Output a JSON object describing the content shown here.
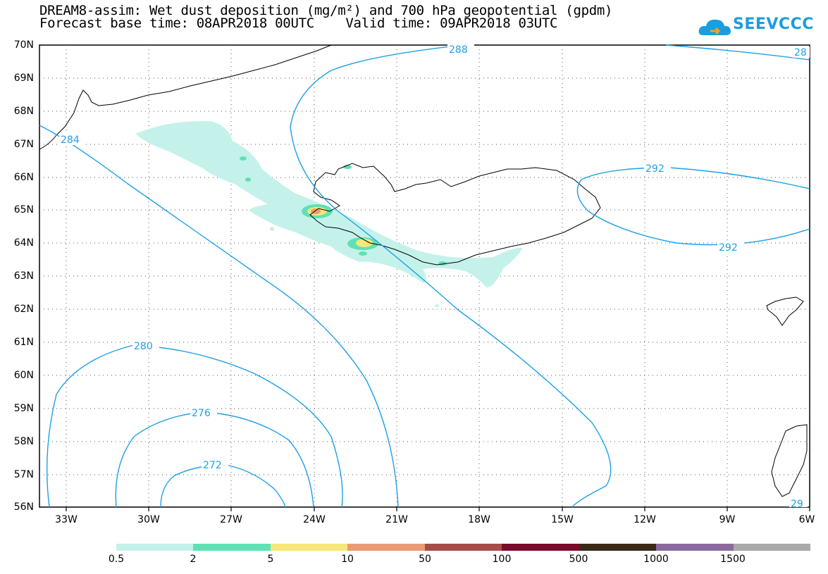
{
  "header": {
    "title_line1": "DREAM8-assim: Wet dust deposition (mg/m²) and 700 hPa geopotential (gpdm)",
    "title_line2": "Forecast base time: 08APR2018 00UTC    Valid time: 09APR2018 03UTC"
  },
  "logo": {
    "text": "SEEVCCC",
    "icon": "cloud-icon",
    "color": "#1a9ee0"
  },
  "axes": {
    "lat_labels": [
      "70N",
      "69N",
      "68N",
      "67N",
      "66N",
      "65N",
      "64N",
      "63N",
      "62N",
      "61N",
      "60N",
      "59N",
      "58N",
      "57N",
      "56N"
    ],
    "lon_labels": [
      "33W",
      "30W",
      "27W",
      "24W",
      "21W",
      "18W",
      "15W",
      "12W",
      "9W",
      "6W"
    ]
  },
  "contours": {
    "color": "#1ea0e6",
    "labels": [
      "288",
      "28",
      "284",
      "292",
      "292",
      "280",
      "276",
      "272",
      "29"
    ]
  },
  "legend": {
    "colors": [
      "#c4f2ea",
      "#5fe0b5",
      "#f5e77a",
      "#eb9a74",
      "#a84c48",
      "#7a0b2a",
      "#3a2a1a",
      "#8a6a9e",
      "#a9a9a9"
    ],
    "labels": [
      "0.5",
      "2",
      "5",
      "10",
      "50",
      "100",
      "500",
      "1000",
      "1500"
    ]
  }
}
